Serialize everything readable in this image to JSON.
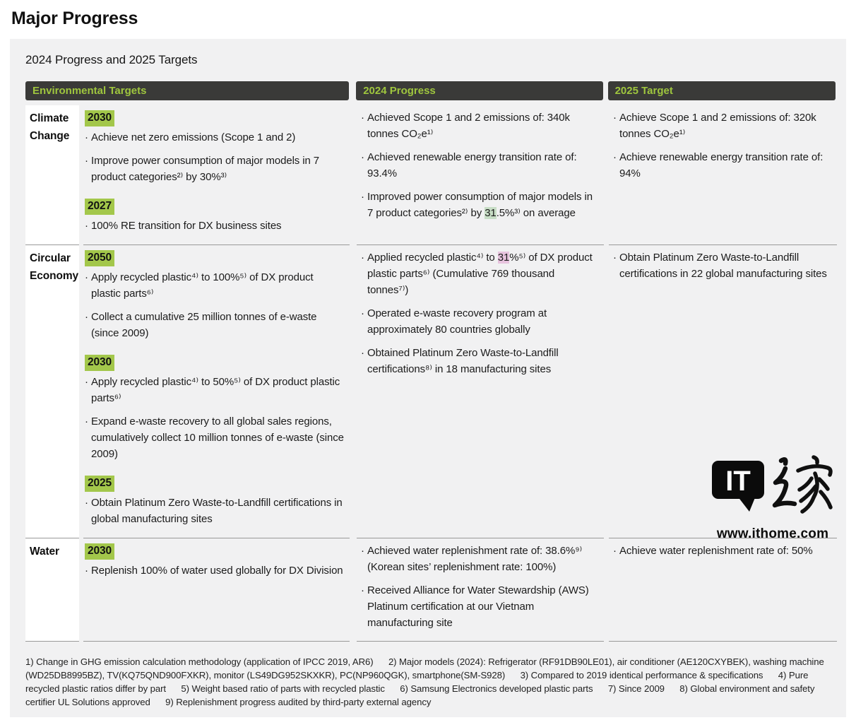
{
  "page": {
    "title": "Major Progress",
    "subtitle": "2024 Progress and 2025 Targets"
  },
  "colors": {
    "panel_bg": "#f1f1f2",
    "header_bg": "#3a3a38",
    "header_text": "#9fc63e",
    "year_highlight": "#a3c74b",
    "inline_highlight_green": "#c7ddc5",
    "inline_highlight_pink": "#e7c3de"
  },
  "table": {
    "headers": [
      {
        "label": "Environmental Targets"
      },
      {
        "label": "2024 Progress"
      },
      {
        "label": "2025 Target"
      }
    ],
    "rows": [
      {
        "label": "Climate Change",
        "targets": [
          {
            "type": "year",
            "text": "2030"
          },
          {
            "type": "bullet",
            "segments": [
              {
                "text": "Achieve net zero emissions (Scope 1 and 2)"
              }
            ]
          },
          {
            "type": "bullet",
            "segments": [
              {
                "text": "Improve power consumption of major models in 7 product categories²⁾ by 30%³⁾"
              }
            ]
          },
          {
            "type": "year",
            "text": "2027"
          },
          {
            "type": "bullet",
            "segments": [
              {
                "text": "100% RE transition for DX business sites"
              }
            ]
          }
        ],
        "progress": [
          {
            "type": "bullet",
            "segments": [
              {
                "text": "Achieved Scope 1 and 2 emissions of: 340k tonnes CO₂e¹⁾"
              }
            ]
          },
          {
            "type": "bullet",
            "segments": [
              {
                "text": "Achieved renewable energy transition rate of: 93.4%"
              }
            ]
          },
          {
            "type": "bullet",
            "segments": [
              {
                "text": "Improved power consumption of major models in 7 product categories²⁾ by "
              },
              {
                "text": "31",
                "highlight": "green"
              },
              {
                "text": ".5%³⁾ on average"
              }
            ]
          }
        ],
        "target2025": [
          {
            "type": "bullet",
            "segments": [
              {
                "text": "Achieve Scope 1 and 2 emissions of: 320k tonnes CO₂e¹⁾"
              }
            ]
          },
          {
            "type": "bullet",
            "segments": [
              {
                "text": "Achieve renewable energy transition rate of: 94%"
              }
            ]
          }
        ]
      },
      {
        "label": "Circular Economy",
        "targets": [
          {
            "type": "year",
            "text": "2050"
          },
          {
            "type": "bullet",
            "segments": [
              {
                "text": "Apply recycled plastic⁴⁾ to 100%⁵⁾ of DX product plastic parts⁶⁾"
              }
            ]
          },
          {
            "type": "bullet",
            "segments": [
              {
                "text": "Collect a cumulative 25 million tonnes of e-waste (since 2009)"
              }
            ]
          },
          {
            "type": "year",
            "text": "2030"
          },
          {
            "type": "bullet",
            "segments": [
              {
                "text": "Apply recycled plastic⁴⁾ to 50%⁵⁾ of DX product plastic parts⁶⁾"
              }
            ]
          },
          {
            "type": "bullet",
            "segments": [
              {
                "text": "Expand e-waste recovery to all global sales regions, cumulatively collect 10 million tonnes of e-waste (since 2009)"
              }
            ]
          },
          {
            "type": "year",
            "text": "2025"
          },
          {
            "type": "bullet",
            "segments": [
              {
                "text": "Obtain Platinum Zero Waste-to-Landfill certifications in global manufacturing sites"
              }
            ]
          }
        ],
        "progress": [
          {
            "type": "bullet",
            "segments": [
              {
                "text": "Applied recycled plastic⁴⁾ to "
              },
              {
                "text": "31",
                "highlight": "pink"
              },
              {
                "text": "%⁵⁾ of DX product plastic parts⁶⁾ (Cumulative 769 thousand tonnes⁷⁾)"
              }
            ]
          },
          {
            "type": "bullet",
            "segments": [
              {
                "text": "Operated e-waste recovery program at approximately 80 countries globally"
              }
            ]
          },
          {
            "type": "bullet",
            "segments": [
              {
                "text": "Obtained Platinum Zero Waste-to-Landfill certifications⁸⁾ in 18 manufacturing sites"
              }
            ]
          }
        ],
        "target2025": [
          {
            "type": "bullet",
            "segments": [
              {
                "text": "Obtain Platinum Zero Waste-to-Landfill certifications in 22 global manufacturing sites"
              }
            ]
          }
        ]
      },
      {
        "label": "Water",
        "targets": [
          {
            "type": "year",
            "text": "2030"
          },
          {
            "type": "bullet",
            "segments": [
              {
                "text": "Replenish 100% of water used globally for DX Division"
              }
            ]
          }
        ],
        "progress": [
          {
            "type": "bullet",
            "segments": [
              {
                "text": "Achieved water replenishment rate of: 38.6%⁹⁾ (Korean sites’ replenishment rate: 100%)"
              }
            ]
          },
          {
            "type": "bullet",
            "segments": [
              {
                "text": "Received Alliance for Water Stewardship (AWS) Platinum certification at our Vietnam manufacturing site"
              }
            ]
          }
        ],
        "target2025": [
          {
            "type": "bullet",
            "segments": [
              {
                "text": "Achieve water replenishment rate of: 50%"
              }
            ]
          }
        ]
      }
    ]
  },
  "footnotes": [
    "1) Change in GHG emission calculation methodology (application of IPCC 2019, AR6)",
    "2) Major models (2024): Refrigerator (RF91DB90LE01), air conditioner (AE120CXYBEK), washing machine (WD25DB8995BZ), TV(KQ75QND900FXKR), monitor (LS49DG952SKXKR), PC(NP960QGK), smartphone(SM-S928)",
    "3) Compared to 2019 identical performance & specifications",
    "4) Pure recycled plastic ratios differ by part",
    "5) Weight based ratio of parts with recycled plastic",
    "6) Samsung Electronics developed plastic parts",
    "7) Since 2009",
    "8) Global environment and safety certifier UL Solutions approved",
    "9) Replenishment progress audited by third-party external agency"
  ],
  "watermark": {
    "logo": "IT",
    "cjk": "之家",
    "url": "www.ithome.com"
  }
}
